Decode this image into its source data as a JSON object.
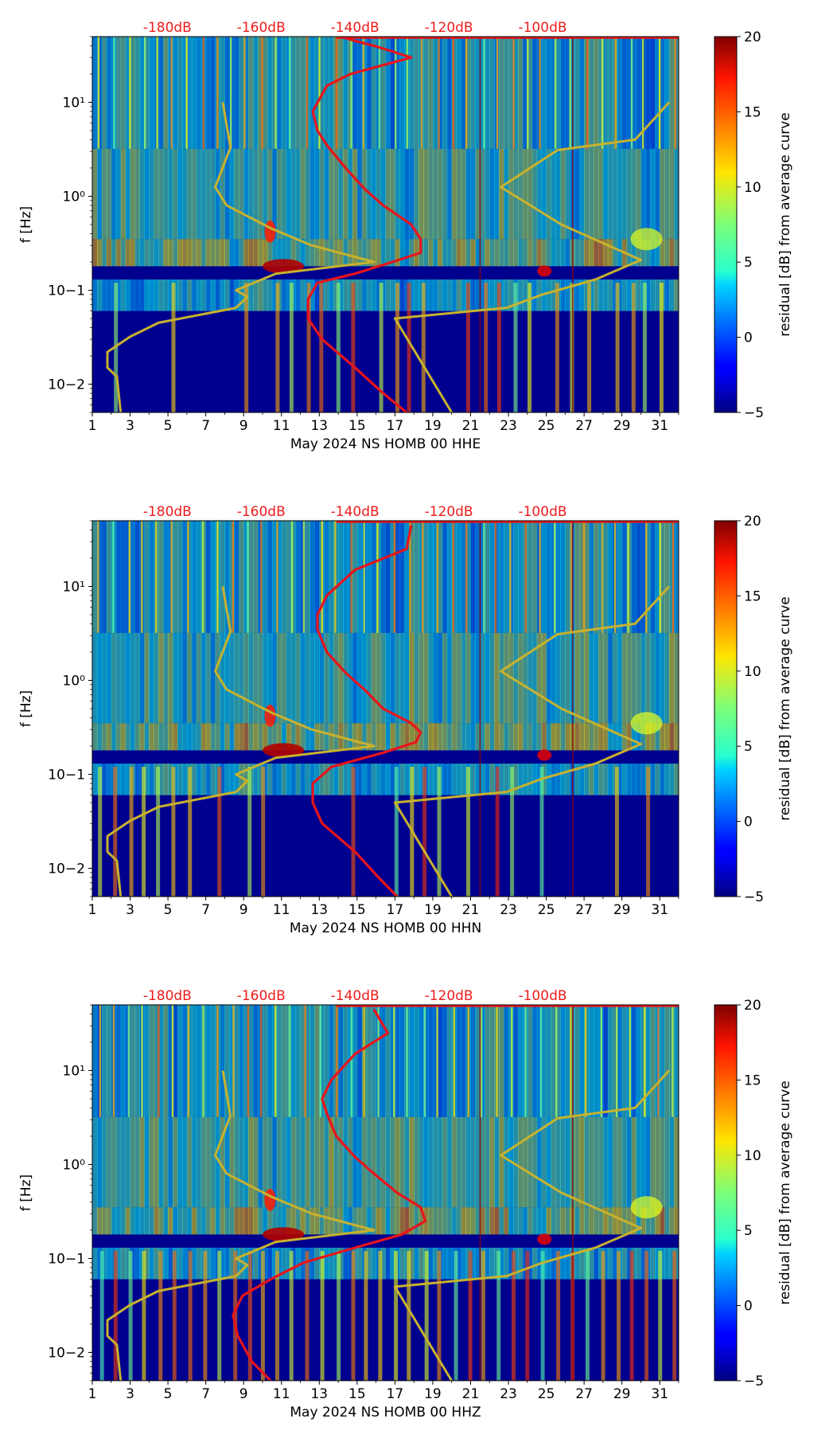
{
  "figure": {
    "colors": {
      "psd_curve": "#e8141b",
      "noise_model": "#c8b22e",
      "top_label": "#ee1c1c"
    },
    "colormap": "jet"
  },
  "chart_data": [
    {
      "type": "heatmap",
      "xlabel": "May 2024 NS HOMB 00 HHE",
      "ylabel": "f [Hz]",
      "x_ticks": [
        "1",
        "3",
        "5",
        "7",
        "9",
        "11",
        "13",
        "15",
        "17",
        "19",
        "21",
        "23",
        "25",
        "27",
        "29",
        "31"
      ],
      "y_ticks": [
        "10−2",
        "10−1",
        "10⁰",
        "10¹"
      ],
      "xlim": [
        1,
        32
      ],
      "ylim_hz": [
        0.005,
        50
      ],
      "yscale": "log",
      "top_axis_labels": [
        "-180dB",
        "-160dB",
        "-140dB",
        "-120dB",
        "-100dB"
      ],
      "top_axis_db": [
        -180,
        -160,
        -140,
        -120,
        -100
      ],
      "colorbar": {
        "label": "residual [dB] from average curve",
        "range": [
          -5,
          20
        ],
        "ticks": [
          "−5",
          "0",
          "5",
          "10",
          "15",
          "20"
        ]
      },
      "psd_curve": {
        "db": [
          -143,
          -140,
          -136,
          -128,
          -141,
          -146,
          -149,
          -148,
          -146,
          -142,
          -138,
          -134,
          -128,
          -126,
          -126,
          -132,
          -140,
          -148,
          -150,
          -150,
          -147,
          -140,
          -134,
          -129
        ],
        "fhz": [
          50,
          45,
          40,
          30,
          20,
          15,
          8,
          5,
          3.5,
          2,
          1.2,
          0.8,
          0.5,
          0.35,
          0.25,
          0.2,
          0.15,
          0.12,
          0.08,
          0.05,
          0.03,
          0.015,
          0.008,
          0.005
        ]
      },
      "low_noise_model": {
        "day": [
          7.9,
          8.3,
          7.5,
          8.1,
          10.5,
          12.6,
          15.9,
          10.7,
          8.6,
          9.2,
          8.6,
          4.5,
          3.0,
          1.8,
          1.8,
          2.3,
          2.5
        ],
        "fhz": [
          10,
          3.3,
          1.25,
          0.8,
          0.45,
          0.3,
          0.2,
          0.15,
          0.1,
          0.085,
          0.065,
          0.045,
          0.032,
          0.022,
          0.015,
          0.012,
          0.005
        ]
      },
      "high_noise_model": {
        "day": [
          31.5,
          29.7,
          25.6,
          22.6,
          25.8,
          30,
          27.6,
          24.8,
          22.9,
          17.0,
          20.0
        ],
        "fhz": [
          10,
          4,
          3.1,
          1.25,
          0.5,
          0.21,
          0.13,
          0.09,
          0.065,
          0.05,
          0.005
        ]
      }
    },
    {
      "type": "heatmap",
      "xlabel": "May 2024 NS HOMB 00 HHN",
      "ylabel": "f [Hz]",
      "x_ticks": [
        "1",
        "3",
        "5",
        "7",
        "9",
        "11",
        "13",
        "15",
        "17",
        "19",
        "21",
        "23",
        "25",
        "27",
        "29",
        "31"
      ],
      "y_ticks": [
        "10−2",
        "10−1",
        "10⁰",
        "10¹"
      ],
      "xlim": [
        1,
        32
      ],
      "ylim_hz": [
        0.005,
        50
      ],
      "yscale": "log",
      "top_axis_labels": [
        "-180dB",
        "-160dB",
        "-140dB",
        "-120dB",
        "-100dB"
      ],
      "top_axis_db": [
        -180,
        -160,
        -140,
        -120,
        -100
      ],
      "colorbar": {
        "label": "residual [dB] from average curve",
        "range": [
          -5,
          20
        ],
        "ticks": [
          "−5",
          "0",
          "5",
          "10",
          "15",
          "20"
        ]
      },
      "psd_curve": {
        "db": [
          -128,
          -129,
          -140,
          -146,
          -148,
          -148,
          -146,
          -142,
          -138,
          -134,
          -128,
          -126,
          -127,
          -134,
          -145,
          -149,
          -149,
          -147,
          -140,
          -135,
          -131
        ],
        "fhz": [
          45,
          25,
          15,
          8,
          5,
          3.5,
          2,
          1.2,
          0.8,
          0.5,
          0.35,
          0.28,
          0.22,
          0.17,
          0.12,
          0.08,
          0.05,
          0.03,
          0.015,
          0.008,
          0.005
        ]
      },
      "low_noise_model": {
        "day": [
          7.9,
          8.3,
          7.5,
          8.1,
          10.5,
          12.6,
          15.9,
          10.7,
          8.6,
          9.2,
          8.6,
          4.5,
          3.0,
          1.8,
          1.8,
          2.3,
          2.5
        ],
        "fhz": [
          10,
          3.3,
          1.25,
          0.8,
          0.45,
          0.3,
          0.2,
          0.15,
          0.1,
          0.085,
          0.065,
          0.045,
          0.032,
          0.022,
          0.015,
          0.012,
          0.005
        ]
      },
      "high_noise_model": {
        "day": [
          31.5,
          29.7,
          25.6,
          22.6,
          25.8,
          30,
          27.6,
          24.8,
          22.9,
          17.0,
          20.0
        ],
        "fhz": [
          10,
          4,
          3.1,
          1.25,
          0.5,
          0.21,
          0.13,
          0.09,
          0.065,
          0.05,
          0.005
        ]
      }
    },
    {
      "type": "heatmap",
      "xlabel": "May 2024 NS HOMB 00 HHZ",
      "ylabel": "f [Hz]",
      "x_ticks": [
        "1",
        "3",
        "5",
        "7",
        "9",
        "11",
        "13",
        "15",
        "17",
        "19",
        "21",
        "23",
        "25",
        "27",
        "29",
        "31"
      ],
      "y_ticks": [
        "10−2",
        "10−1",
        "10⁰",
        "10¹"
      ],
      "xlim": [
        1,
        32
      ],
      "ylim_hz": [
        0.005,
        50
      ],
      "yscale": "log",
      "top_axis_labels": [
        "-180dB",
        "-160dB",
        "-140dB",
        "-120dB",
        "-100dB"
      ],
      "top_axis_db": [
        -180,
        -160,
        -140,
        -120,
        -100
      ],
      "colorbar": {
        "label": "residual [dB] from average curve",
        "range": [
          -5,
          20
        ],
        "ticks": [
          "−5",
          "0",
          "5",
          "10",
          "15",
          "20"
        ]
      },
      "psd_curve": {
        "db": [
          -136,
          -133,
          -140,
          -145,
          -147,
          -146,
          -144,
          -140,
          -136,
          -131,
          -126,
          -125,
          -130,
          -140,
          -151,
          -158,
          -164,
          -166,
          -165,
          -162,
          -158
        ],
        "fhz": [
          45,
          25,
          15,
          8,
          5,
          3.5,
          2,
          1.2,
          0.8,
          0.5,
          0.35,
          0.25,
          0.18,
          0.13,
          0.09,
          0.06,
          0.04,
          0.025,
          0.015,
          0.008,
          0.005
        ]
      },
      "low_noise_model": {
        "day": [
          7.9,
          8.3,
          7.5,
          8.1,
          10.5,
          12.6,
          15.9,
          10.7,
          8.6,
          9.2,
          8.6,
          4.5,
          3.0,
          1.8,
          1.8,
          2.3,
          2.5
        ],
        "fhz": [
          10,
          3.3,
          1.25,
          0.8,
          0.45,
          0.3,
          0.2,
          0.15,
          0.1,
          0.085,
          0.065,
          0.045,
          0.032,
          0.022,
          0.015,
          0.012,
          0.005
        ]
      },
      "high_noise_model": {
        "day": [
          31.5,
          29.7,
          25.6,
          22.6,
          25.8,
          30,
          27.6,
          24.8,
          22.9,
          17.0,
          20.0
        ],
        "fhz": [
          10,
          4,
          3.1,
          1.25,
          0.5,
          0.21,
          0.13,
          0.09,
          0.065,
          0.05,
          0.005
        ]
      }
    }
  ]
}
